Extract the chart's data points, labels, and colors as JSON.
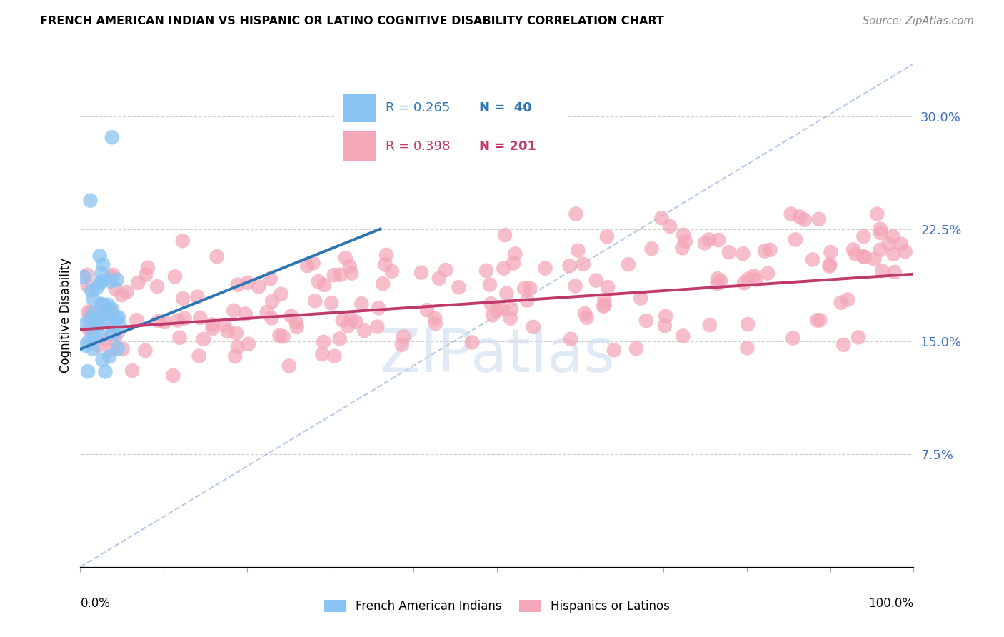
{
  "title": "FRENCH AMERICAN INDIAN VS HISPANIC OR LATINO COGNITIVE DISABILITY CORRELATION CHART",
  "source": "Source: ZipAtlas.com",
  "ylabel": "Cognitive Disability",
  "yticks": [
    0.075,
    0.15,
    0.225,
    0.3
  ],
  "ytick_labels": [
    "7.5%",
    "15.0%",
    "22.5%",
    "30.0%"
  ],
  "xlim": [
    0.0,
    1.0
  ],
  "ylim": [
    0.0,
    0.335
  ],
  "legend_r_blue": "R = 0.265",
  "legend_n_blue": "N =  40",
  "legend_r_pink": "R = 0.398",
  "legend_n_pink": "N = 201",
  "blue_color": "#89C4F4",
  "pink_color": "#F4A7B9",
  "blue_line_color": "#2E75B6",
  "pink_line_color": "#C0396B",
  "dash_color": "#AABFE8",
  "grid_color": "#D0D0D0",
  "watermark_color": "#C8D8F0",
  "right_tick_color": "#3D6FC4",
  "blue_line_x0": 0.0,
  "blue_line_y0": 0.145,
  "blue_line_x1": 0.36,
  "blue_line_y1": 0.225,
  "pink_line_x0": 0.0,
  "pink_line_y0": 0.158,
  "pink_line_x1": 1.0,
  "pink_line_y1": 0.195,
  "dash_line_x0": 0.0,
  "dash_line_y0": 0.0,
  "dash_line_x1": 1.0,
  "dash_line_y1": 0.335
}
